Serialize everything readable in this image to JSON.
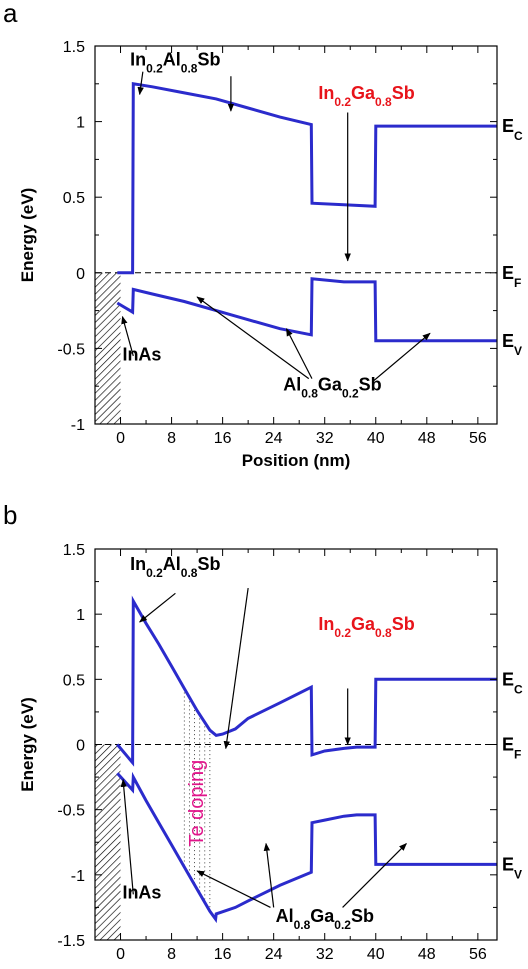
{
  "chart_data": [
    {
      "panel_label": "a",
      "type": "line",
      "xlabel": "Position (nm)",
      "ylabel": "Energy (eV)",
      "xlim": [
        -4,
        59
      ],
      "ylim": [
        -1,
        1.5
      ],
      "x_ticks": [
        0,
        8,
        16,
        24,
        32,
        40,
        48,
        56
      ],
      "y_ticks": [
        -1,
        -0.5,
        0,
        0.5,
        1,
        1.5
      ],
      "y_tick_labels": [
        "-1",
        "-0.5",
        "0",
        "0.5",
        "1",
        "1.5"
      ],
      "fermi_level": 0,
      "hatched_region": [
        -4,
        0
      ],
      "series": [
        {
          "name": "E_C",
          "x": [
            -0.5,
            1.9,
            2.0,
            5,
            10,
            15,
            20,
            25,
            29.9,
            30.0,
            35,
            39.9,
            40.0,
            59
          ],
          "y": [
            0,
            0,
            1.25,
            1.23,
            1.19,
            1.15,
            1.09,
            1.03,
            0.98,
            0.46,
            0.45,
            0.44,
            0.97,
            0.97
          ]
        },
        {
          "name": "E_V",
          "x": [
            -0.5,
            1.9,
            2.0,
            5,
            10,
            15,
            20,
            25,
            29.9,
            30.0,
            35,
            39.9,
            40.0,
            59
          ],
          "y": [
            -0.2,
            -0.26,
            -0.11,
            -0.14,
            -0.19,
            -0.25,
            -0.31,
            -0.37,
            -0.41,
            -0.04,
            -0.06,
            -0.06,
            -0.45,
            -0.45
          ]
        }
      ],
      "band_labels": {
        "ec": "E",
        "ec_sub": "C",
        "ef": "E",
        "ef_sub": "F",
        "ev": "E",
        "ev_sub": "V"
      },
      "annotations": {
        "inalsb": {
          "p1": "In",
          "s1": "0.2",
          "p2": "Al",
          "s2": "0.8",
          "p3": "Sb"
        },
        "ingasb": {
          "p1": "In",
          "s1": "0.2",
          "p2": "Ga",
          "s2": "0.8",
          "p3": "Sb"
        },
        "algasb": {
          "p1": "Al",
          "s1": "0.8",
          "p2": "Ga",
          "s2": "0.2",
          "p3": "Sb"
        },
        "inas": "InAs"
      }
    },
    {
      "panel_label": "b",
      "type": "line",
      "xlabel": "Position (nm)",
      "ylabel": "Energy (eV)",
      "xlim": [
        -4,
        59
      ],
      "ylim": [
        -1.5,
        1.5
      ],
      "x_ticks": [
        0,
        8,
        16,
        24,
        32,
        40,
        48,
        56
      ],
      "y_ticks": [
        -1.5,
        -1,
        -0.5,
        0,
        0.5,
        1,
        1.5
      ],
      "y_tick_labels": [
        "-1.5",
        "-1",
        "-0.5",
        "0",
        "0.5",
        "1",
        "1.5"
      ],
      "fermi_level": 0,
      "hatched_region": [
        -4,
        0
      ],
      "doping_region": [
        10,
        14
      ],
      "doping_label": "Te doping",
      "series": [
        {
          "name": "E_C",
          "x": [
            -0.5,
            1.9,
            2.0,
            4,
            6,
            8,
            10,
            12,
            14,
            15,
            16,
            18,
            20,
            25,
            29.9,
            30.0,
            32,
            35,
            37,
            39.9,
            40.0,
            59
          ],
          "y": [
            0,
            -0.14,
            1.1,
            0.93,
            0.77,
            0.6,
            0.43,
            0.26,
            0.11,
            0.07,
            0.08,
            0.12,
            0.2,
            0.32,
            0.44,
            -0.08,
            -0.05,
            -0.03,
            -0.02,
            -0.02,
            0.5,
            0.5
          ]
        },
        {
          "name": "E_V",
          "x": [
            -0.5,
            1.9,
            2.0,
            4,
            6,
            8,
            10,
            12,
            14,
            14.9,
            15.0,
            18,
            20,
            25,
            29.9,
            30.0,
            32,
            35,
            37,
            39.9,
            40.0,
            59
          ],
          "y": [
            -0.22,
            -0.35,
            -0.25,
            -0.43,
            -0.6,
            -0.77,
            -0.94,
            -1.11,
            -1.28,
            -1.34,
            -1.3,
            -1.25,
            -1.2,
            -1.08,
            -0.98,
            -0.6,
            -0.58,
            -0.55,
            -0.54,
            -0.54,
            -0.92,
            -0.92
          ]
        }
      ],
      "band_labels": {
        "ec": "E",
        "ec_sub": "C",
        "ef": "E",
        "ef_sub": "F",
        "ev": "E",
        "ev_sub": "V"
      },
      "annotations": {
        "inalsb": {
          "p1": "In",
          "s1": "0.2",
          "p2": "Al",
          "s2": "0.8",
          "p3": "Sb"
        },
        "ingasb": {
          "p1": "In",
          "s1": "0.2",
          "p2": "Ga",
          "s2": "0.8",
          "p3": "Sb"
        },
        "algasb": {
          "p1": "Al",
          "s1": "0.8",
          "p2": "Ga",
          "s2": "0.2",
          "p3": "Sb"
        },
        "inas": "InAs"
      }
    }
  ]
}
